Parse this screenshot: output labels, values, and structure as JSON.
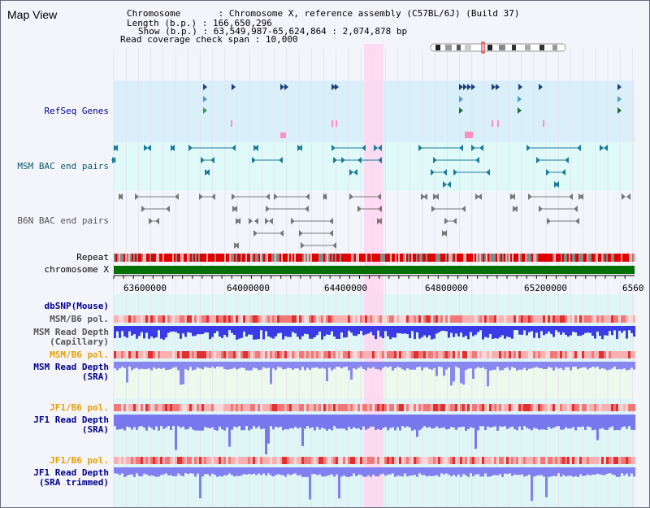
{
  "title": "Map View",
  "info": {
    "chromosome_label": "Chromosome",
    "chromosome_value": "Chromosome X, reference assembly (C57BL/6J) (Build 37)",
    "length_label": "Length (b.p.)",
    "length_value": "166,650,296",
    "show_label": "Show (b.p.)",
    "show_value": "63,549,987-65,624,864 : 2,074,878 bp",
    "coverage_label": "Read coverage check span",
    "coverage_value": "10,000"
  },
  "tracks": {
    "refseq": "RefSeq Genes",
    "msm_bac": "MSM BAC end pairs",
    "b6n_bac": "B6N BAC end pairs",
    "repeat": "Repeat",
    "chromosome": "chromosome X",
    "dbsnp": "dbSNP(Mouse)",
    "msm_pol_1": "MSM/B6 pol.",
    "msm_depth_cap_1": "MSM Read Depth",
    "msm_depth_cap_2": "(Capillary)",
    "msm_pol_2": "MSM/B6 pol.",
    "msm_depth_sra_1": "MSM Read Depth",
    "msm_depth_sra_2": "(SRA)",
    "jf1_pol_1": "JF1/B6 pol.",
    "jf1_depth_sra_1": "JF1 Read Depth",
    "jf1_depth_sra_2": "(SRA)",
    "jf1_pol_2": "JF1/B6 pol.",
    "jf1_depth_trim_1": "JF1 Read Depth",
    "jf1_depth_trim_2": "(SRA trimmed)"
  },
  "axis": {
    "ticks": [
      "63600000",
      "64000000",
      "64400000",
      "64800000",
      "65200000",
      "6560"
    ]
  },
  "colors": {
    "refseq_bg": "#d9f0fb",
    "bac_bg": "#e0fafa",
    "highlight": "#ffd6f0",
    "chromosome_bar": "#007000",
    "repeat_red": "#e00000",
    "depth_blue": "#5050e8",
    "pol_red": "#e04040"
  }
}
